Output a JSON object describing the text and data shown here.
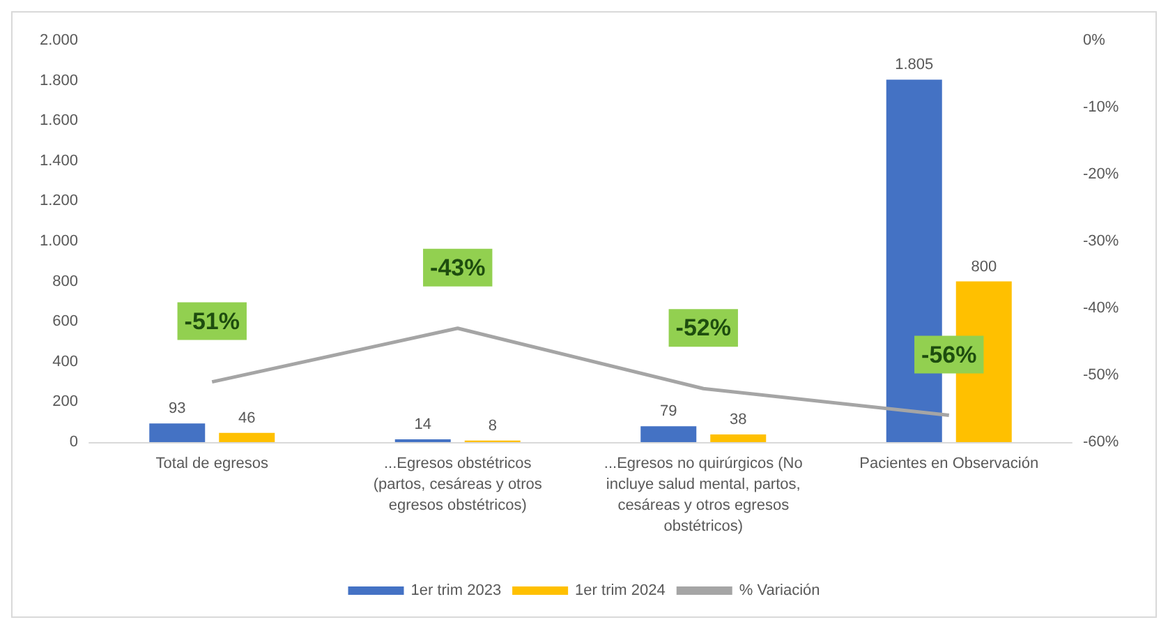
{
  "chart_data": {
    "type": "bar",
    "categories": [
      "Total de egresos",
      "...Egresos obstétricos (partos, cesáreas y otros egresos obstétricos)",
      "...Egresos no quirúrgicos (No incluye salud mental, partos, cesáreas y otros egresos obstétricos)",
      "Pacientes en Observación"
    ],
    "series": [
      {
        "name": "1er trim 2023",
        "color": "#4472c4",
        "values": [
          93,
          14,
          79,
          1805
        ],
        "value_labels": [
          "93",
          "14",
          "79",
          "1.805"
        ]
      },
      {
        "name": "1er trim 2024",
        "color": "#ffc000",
        "values": [
          46,
          8,
          38,
          800
        ],
        "value_labels": [
          "46",
          "8",
          "38",
          "800"
        ]
      },
      {
        "name": "% Variación",
        "type": "line",
        "axis": "y2",
        "color": "#a5a5a5",
        "values": [
          -51,
          -43,
          -52,
          -56
        ],
        "value_labels": [
          "-51%",
          "-43%",
          "-52%",
          "-56%"
        ]
      }
    ],
    "ylim": [
      0,
      2000
    ],
    "yticks": [
      0,
      200,
      400,
      600,
      800,
      {
        "value": 1000,
        "label": "1.000"
      },
      {
        "value": 1200,
        "label": "1.200"
      },
      {
        "value": 1400,
        "label": "1.400"
      },
      {
        "value": 1600,
        "label": "1.600"
      },
      {
        "value": 1800,
        "label": "1.800"
      },
      {
        "value": 2000,
        "label": "2.000"
      }
    ],
    "y2lim": [
      -60,
      0
    ],
    "y2ticks": [
      {
        "value": -60,
        "label": "-60%"
      },
      {
        "value": -50,
        "label": "-50%"
      },
      {
        "value": -40,
        "label": "-40%"
      },
      {
        "value": -30,
        "label": "-30%"
      },
      {
        "value": -20,
        "label": "-20%"
      },
      {
        "value": -10,
        "label": "-10%"
      },
      {
        "value": 0,
        "label": "0%"
      }
    ],
    "legend": "bottom",
    "grid": false
  }
}
